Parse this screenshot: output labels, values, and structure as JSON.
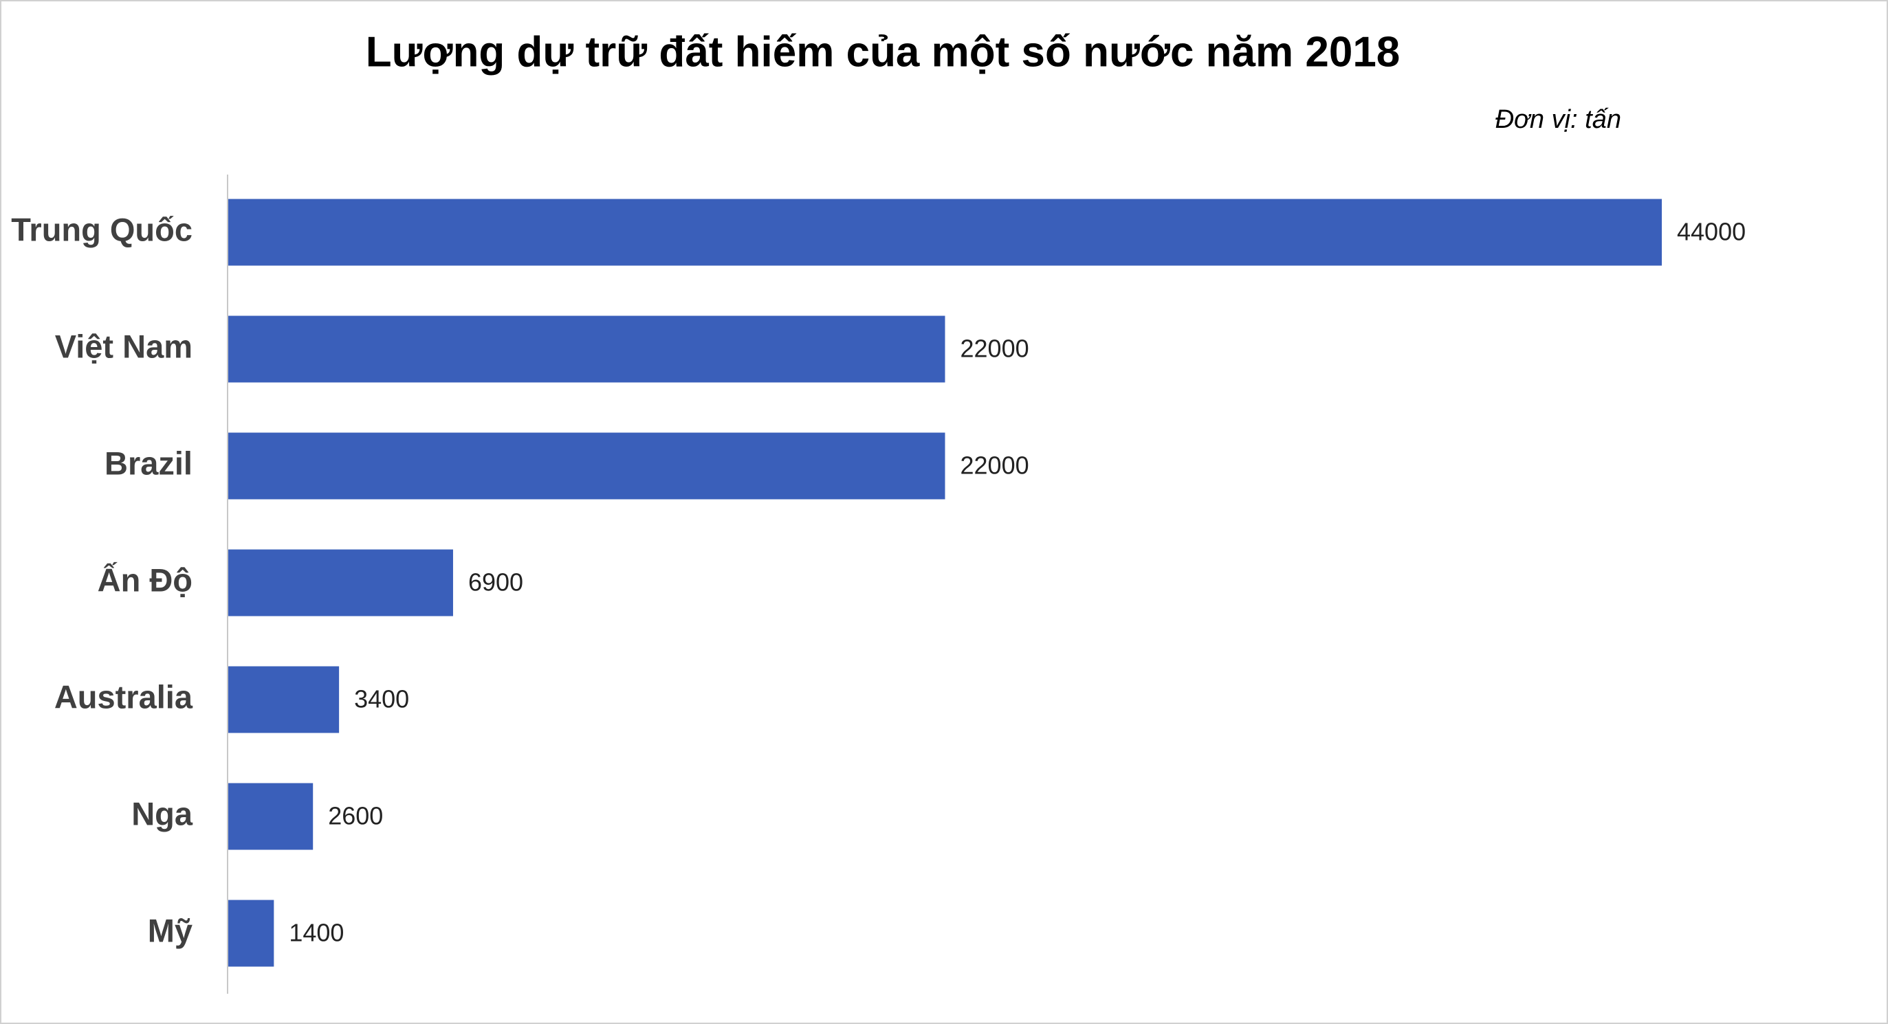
{
  "chart_data": {
    "type": "bar",
    "orientation": "horizontal",
    "title": "Lượng dự trữ đất hiếm của một số nước năm 2018",
    "subtitle": "Đơn vị: tấn",
    "categories": [
      "Trung Quốc",
      "Việt Nam",
      "Brazil",
      "Ấn Độ",
      "Australia",
      "Nga",
      "Mỹ"
    ],
    "values": [
      44000,
      22000,
      22000,
      6900,
      3400,
      2600,
      1400
    ],
    "color": "#3a5fba"
  }
}
